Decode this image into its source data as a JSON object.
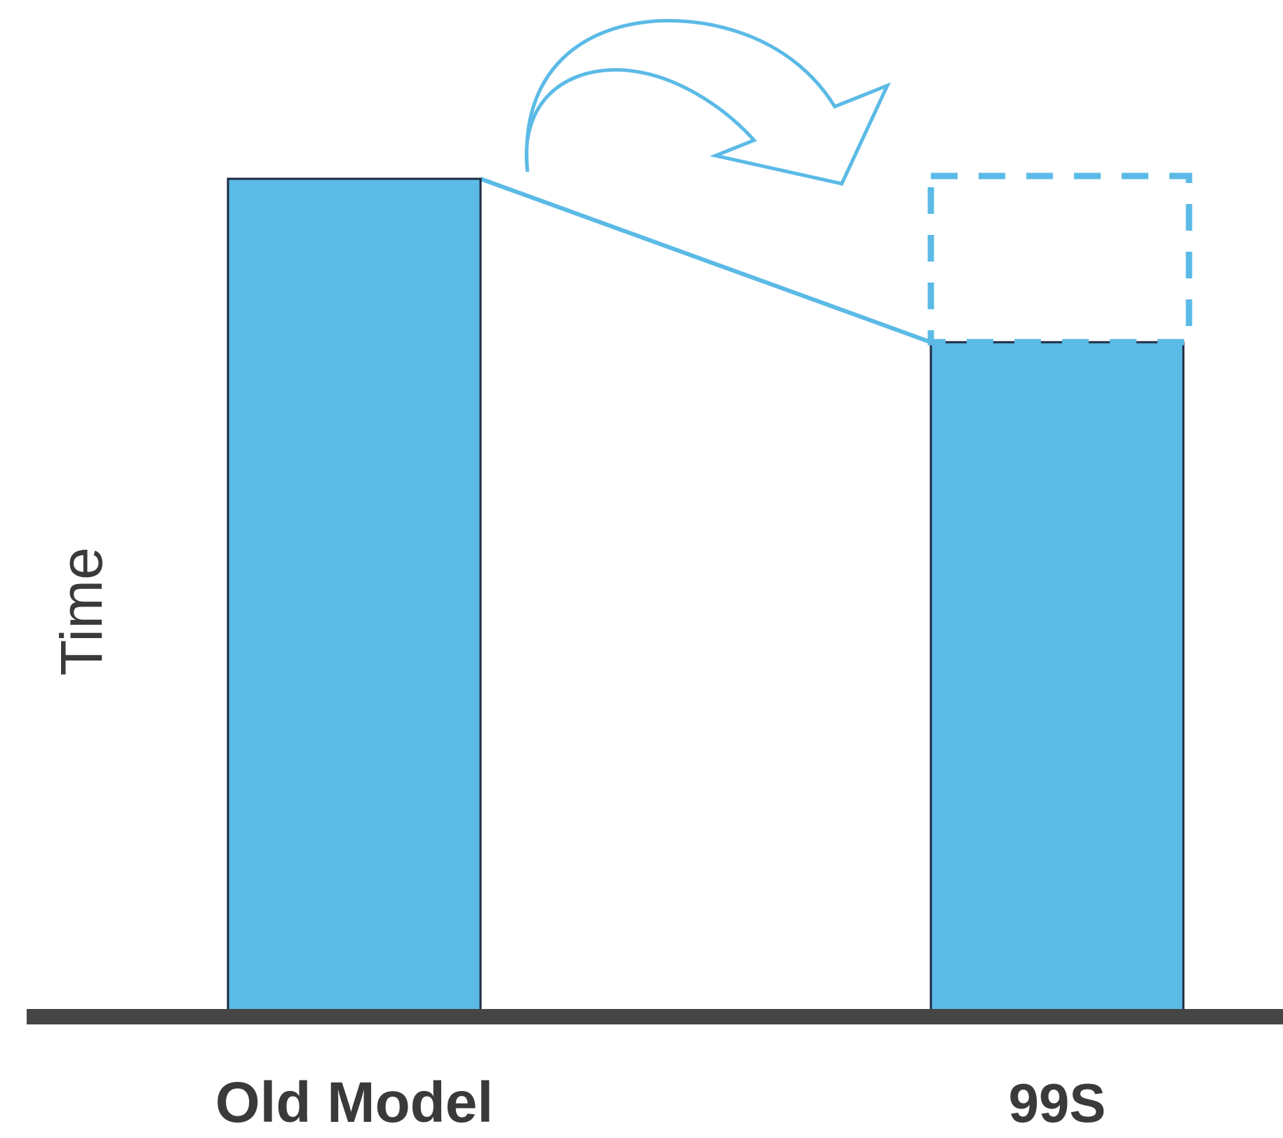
{
  "chart_data": {
    "type": "bar",
    "title": "",
    "xlabel": "",
    "ylabel": "Time",
    "categories": [
      "Old Model",
      "99S"
    ],
    "values": [
      100,
      80.5
    ],
    "ylim": [
      0,
      100
    ],
    "grid": false,
    "legend": "none",
    "reference_box": {
      "category": "99S",
      "value": 100,
      "style": "dashed-outline"
    },
    "annotation": {
      "type": "curved-arrow",
      "from": "Old Model",
      "to": "99S",
      "connector_line": true
    },
    "colors": {
      "bar_fill": "#5bbae6",
      "bar_stroke": "#1e2a40",
      "accent": "#5bbae6",
      "axis": "#454545",
      "text": "#3a3a3a"
    }
  }
}
